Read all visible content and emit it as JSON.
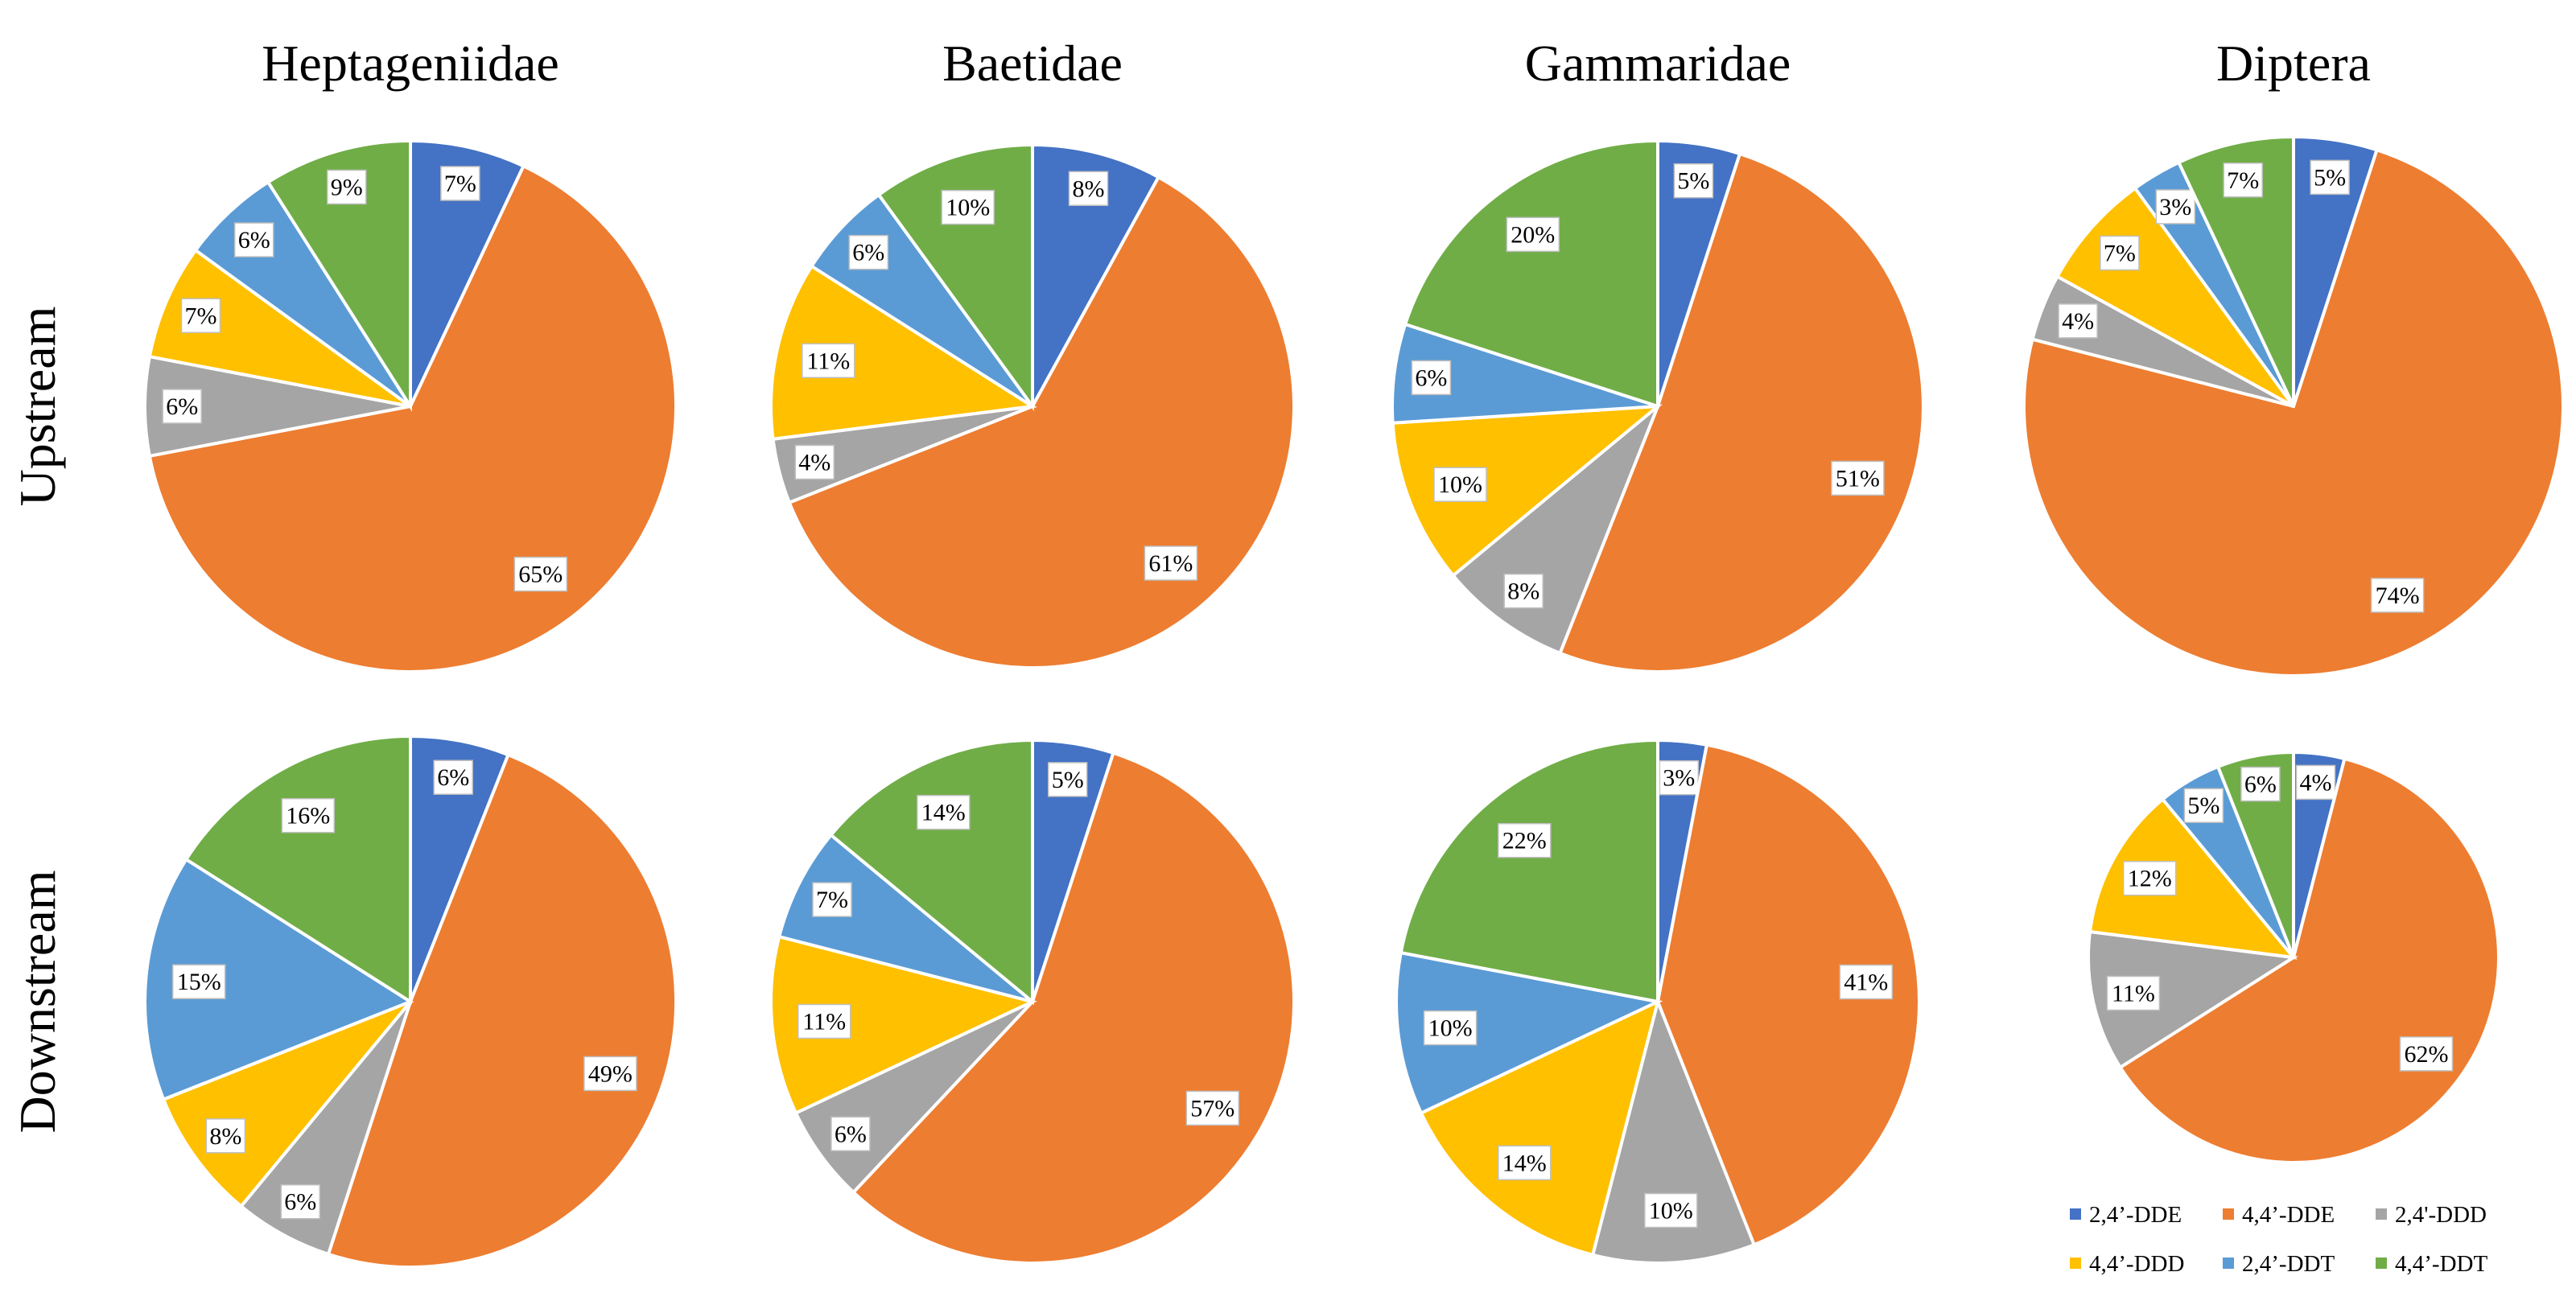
{
  "chart_data": {
    "type": "pie",
    "columns": [
      "Heptageniidae",
      "Baetidae",
      "Gammaridae",
      "Diptera"
    ],
    "rows": [
      "Upstream",
      "Downstream"
    ],
    "legend_position": "bottom-right",
    "series": [
      {
        "name": "2,4’-DDE",
        "color": "#4472c4"
      },
      {
        "name": "4,4’-DDE",
        "color": "#ed7d31"
      },
      {
        "name": "2,4'-DDD",
        "color": "#a5a5a5"
      },
      {
        "name": "4,4’-DDD",
        "color": "#ffc000"
      },
      {
        "name": "2,4’-DDT",
        "color": "#5b9bd5"
      },
      {
        "name": "4,4’-DDT",
        "color": "#70ad47"
      }
    ],
    "pies": [
      {
        "row": "Upstream",
        "column": "Heptageniidae",
        "values": [
          7,
          65,
          6,
          7,
          6,
          9
        ],
        "labels": [
          "7%",
          "65%",
          "6%",
          "7%",
          "6%",
          "9%"
        ]
      },
      {
        "row": "Upstream",
        "column": "Baetidae",
        "values": [
          8,
          61,
          4,
          11,
          6,
          10
        ],
        "labels": [
          "8%",
          "61%",
          "4%",
          "11%",
          "6%",
          "10%"
        ]
      },
      {
        "row": "Upstream",
        "column": "Gammaridae",
        "values": [
          5,
          51,
          8,
          10,
          6,
          20
        ],
        "labels": [
          "5%",
          "51%",
          "8%",
          "10%",
          "6%",
          "20%"
        ]
      },
      {
        "row": "Upstream",
        "column": "Diptera",
        "values": [
          5,
          74,
          4,
          7,
          3,
          7
        ],
        "labels": [
          "5%",
          "74%",
          "4%",
          "7%",
          "3%",
          "7%"
        ]
      },
      {
        "row": "Downstream",
        "column": "Heptageniidae",
        "values": [
          6,
          49,
          6,
          8,
          15,
          16
        ],
        "labels": [
          "6%",
          "49%",
          "6%",
          "8%",
          "15%",
          "16%"
        ]
      },
      {
        "row": "Downstream",
        "column": "Baetidae",
        "values": [
          5,
          57,
          6,
          11,
          7,
          14
        ],
        "labels": [
          "5%",
          "57%",
          "6%",
          "11%",
          "7%",
          "14%"
        ]
      },
      {
        "row": "Downstream",
        "column": "Gammaridae",
        "values": [
          3,
          41,
          10,
          14,
          10,
          22
        ],
        "labels": [
          "3%",
          "41%",
          "10%",
          "14%",
          "10%",
          "22%"
        ]
      },
      {
        "row": "Downstream",
        "column": "Diptera",
        "values": [
          4,
          62,
          11,
          12,
          5,
          6
        ],
        "labels": [
          "4%",
          "62%",
          "11%",
          "12%",
          "5%",
          "6%"
        ]
      }
    ]
  }
}
